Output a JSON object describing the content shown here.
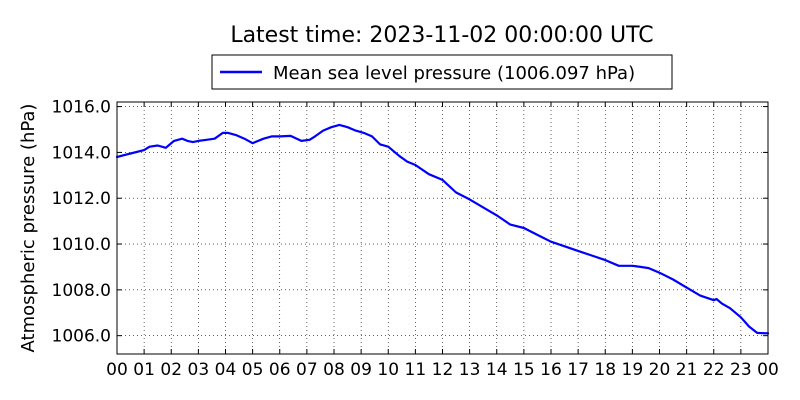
{
  "chart_data": {
    "type": "line",
    "title": "Latest time: 2023-11-02 00:00:00 UTC",
    "ylabel": "Atmospheric pressure (hPa)",
    "xlabel": "",
    "xlim": [
      0,
      24
    ],
    "ylim": [
      1005.2,
      1016.2
    ],
    "grid": true,
    "legend_position": "top-center",
    "x_ticks": [
      0,
      1,
      2,
      3,
      4,
      5,
      6,
      7,
      8,
      9,
      10,
      11,
      12,
      13,
      14,
      15,
      16,
      17,
      18,
      19,
      20,
      21,
      22,
      23,
      24
    ],
    "x_tick_labels": [
      "00",
      "01",
      "02",
      "03",
      "04",
      "05",
      "06",
      "07",
      "08",
      "09",
      "10",
      "11",
      "12",
      "13",
      "14",
      "15",
      "16",
      "17",
      "18",
      "19",
      "20",
      "21",
      "22",
      "23",
      "00"
    ],
    "y_ticks": [
      1006,
      1008,
      1010,
      1012,
      1014,
      1016
    ],
    "y_tick_labels": [
      "1006.0",
      "1008.0",
      "1010.0",
      "1012.0",
      "1014.0",
      "1016.0"
    ],
    "series": [
      {
        "name": "Mean sea level pressure (1006.097 hPa)",
        "color": "#0000ff",
        "x": [
          0,
          0.5,
          1,
          1.2,
          1.5,
          1.8,
          2.1,
          2.4,
          2.6,
          2.8,
          3.0,
          3.3,
          3.6,
          3.9,
          4.1,
          4.4,
          4.7,
          5.0,
          5.4,
          5.7,
          6.0,
          6.4,
          6.8,
          7.1,
          7.3,
          7.6,
          7.9,
          8.2,
          8.5,
          8.8,
          9.1,
          9.4,
          9.7,
          10.0,
          10.4,
          10.7,
          11.0,
          11.5,
          12.0,
          12.5,
          13.0,
          13.5,
          14.0,
          14.5,
          15.0,
          15.5,
          16.0,
          16.5,
          17.0,
          17.5,
          18.0,
          18.5,
          19.0,
          19.3,
          19.6,
          20.0,
          20.5,
          21.0,
          21.5,
          22.0,
          22.1,
          22.3,
          22.6,
          23.0,
          23.3,
          23.6,
          24.0
        ],
        "y": [
          1013.8,
          1013.95,
          1014.1,
          1014.25,
          1014.3,
          1014.2,
          1014.5,
          1014.6,
          1014.5,
          1014.45,
          1014.5,
          1014.55,
          1014.6,
          1014.85,
          1014.85,
          1014.75,
          1014.6,
          1014.4,
          1014.6,
          1014.7,
          1014.7,
          1014.72,
          1014.5,
          1014.55,
          1014.7,
          1014.95,
          1015.1,
          1015.2,
          1015.1,
          1014.95,
          1014.85,
          1014.7,
          1014.35,
          1014.25,
          1013.85,
          1013.6,
          1013.45,
          1013.05,
          1012.8,
          1012.25,
          1011.95,
          1011.6,
          1011.25,
          1010.85,
          1010.7,
          1010.4,
          1010.1,
          1009.9,
          1009.7,
          1009.5,
          1009.3,
          1009.05,
          1009.05,
          1009.0,
          1008.95,
          1008.75,
          1008.45,
          1008.1,
          1007.75,
          1007.55,
          1007.6,
          1007.4,
          1007.2,
          1006.8,
          1006.4,
          1006.12,
          1006.1
        ]
      }
    ]
  }
}
